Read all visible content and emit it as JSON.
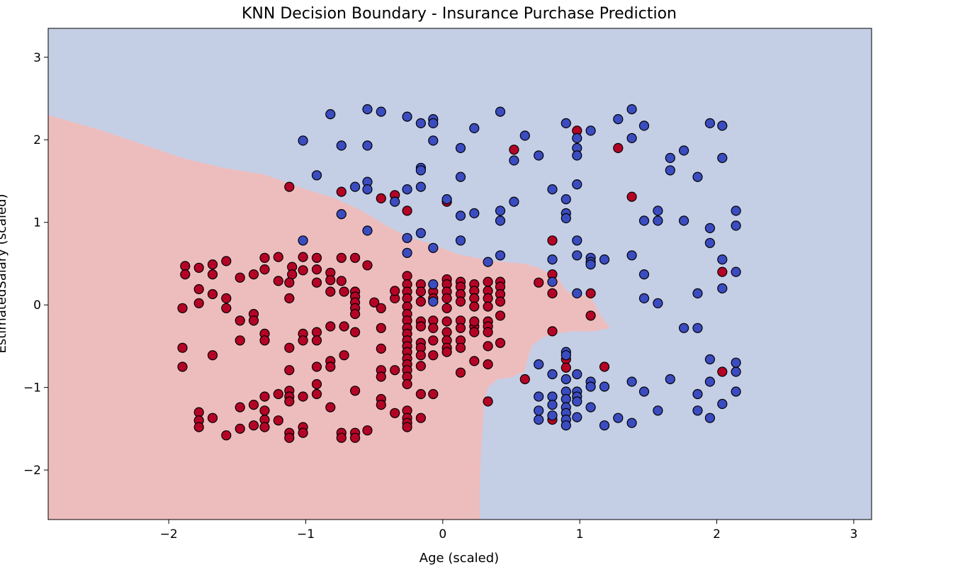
{
  "chart_data": {
    "type": "scatter",
    "title": "KNN Decision Boundary - Insurance Purchase Prediction",
    "xlabel": "Age (scaled)",
    "ylabel": "EstimatedSalary (scaled)",
    "xlim": [
      -2.88,
      3.13
    ],
    "ylim": [
      -2.6,
      3.35
    ],
    "xticks": [
      -2,
      -1,
      0,
      1,
      2,
      3
    ],
    "yticks": [
      -2,
      -1,
      0,
      1,
      2,
      3
    ],
    "xtick_labels": [
      "−2",
      "−1",
      "0",
      "1",
      "2",
      "3"
    ],
    "ytick_labels": [
      "−2",
      "−1",
      "0",
      "1",
      "2",
      "3"
    ],
    "colors": {
      "class_0_region": "#edbdbe",
      "class_1_region": "#c4cfe6",
      "class_0_point": "#b40426",
      "class_1_point": "#3b4cc0",
      "point_edge": "#000000"
    },
    "boundary": [
      [
        -2.88,
        2.3
      ],
      [
        -2.5,
        2.12
      ],
      [
        -2.2,
        1.95
      ],
      [
        -1.9,
        1.78
      ],
      [
        -1.6,
        1.66
      ],
      [
        -1.3,
        1.58
      ],
      [
        -1.0,
        1.4
      ],
      [
        -0.8,
        1.3
      ],
      [
        -0.6,
        1.15
      ],
      [
        -0.4,
        0.95
      ],
      [
        -0.25,
        0.82
      ],
      [
        -0.1,
        0.75
      ],
      [
        0.1,
        0.62
      ],
      [
        0.3,
        0.55
      ],
      [
        0.45,
        0.52
      ],
      [
        0.6,
        0.5
      ],
      [
        0.7,
        0.45
      ],
      [
        0.78,
        0.38
      ],
      [
        0.85,
        0.32
      ],
      [
        0.88,
        0.22
      ],
      [
        0.92,
        0.15
      ],
      [
        1.0,
        0.12
      ],
      [
        1.08,
        0.1
      ],
      [
        1.12,
        -0.02
      ],
      [
        1.15,
        -0.12
      ],
      [
        1.22,
        -0.28
      ],
      [
        1.1,
        -0.32
      ],
      [
        0.95,
        -0.32
      ],
      [
        0.82,
        -0.35
      ],
      [
        0.72,
        -0.4
      ],
      [
        0.65,
        -0.5
      ],
      [
        0.62,
        -0.65
      ],
      [
        0.6,
        -0.8
      ],
      [
        0.5,
        -0.88
      ],
      [
        0.4,
        -0.9
      ],
      [
        0.33,
        -1.0
      ],
      [
        0.3,
        -1.2
      ],
      [
        0.29,
        -1.5
      ],
      [
        0.28,
        -1.8
      ],
      [
        0.27,
        -2.2
      ],
      [
        0.27,
        -2.6
      ]
    ],
    "class_0": [
      [
        -1.88,
        0.47
      ],
      [
        -1.88,
        0.37
      ],
      [
        -1.78,
        0.45
      ],
      [
        -1.68,
        0.49
      ],
      [
        -1.68,
        0.37
      ],
      [
        -1.58,
        0.53
      ],
      [
        -1.48,
        0.33
      ],
      [
        -1.38,
        0.37
      ],
      [
        -1.3,
        0.57
      ],
      [
        -1.3,
        0.43
      ],
      [
        -1.2,
        0.58
      ],
      [
        -1.2,
        0.29
      ],
      [
        -1.1,
        0.46
      ],
      [
        -1.1,
        0.37
      ],
      [
        -1.02,
        0.58
      ],
      [
        -1.02,
        0.42
      ],
      [
        -0.92,
        0.57
      ],
      [
        -0.92,
        0.43
      ],
      [
        -0.82,
        0.39
      ],
      [
        -0.82,
        0.3
      ],
      [
        -0.74,
        0.57
      ],
      [
        -0.74,
        0.29
      ],
      [
        -0.64,
        0.57
      ],
      [
        -0.55,
        0.48
      ],
      [
        -1.9,
        -0.04
      ],
      [
        -1.78,
        0.02
      ],
      [
        -1.78,
        0.19
      ],
      [
        -1.68,
        0.13
      ],
      [
        -1.58,
        0.08
      ],
      [
        -1.58,
        -0.04
      ],
      [
        -1.48,
        -0.19
      ],
      [
        -1.38,
        -0.11
      ],
      [
        -1.38,
        -0.19
      ],
      [
        -1.12,
        0.08
      ],
      [
        -1.12,
        0.27
      ],
      [
        -0.92,
        0.27
      ],
      [
        -0.82,
        0.16
      ],
      [
        -0.72,
        0.16
      ],
      [
        -0.64,
        0.16
      ],
      [
        -0.64,
        0.1
      ],
      [
        -0.64,
        0.03
      ],
      [
        -0.64,
        -0.04
      ],
      [
        -0.64,
        -0.11
      ],
      [
        -0.5,
        0.03
      ],
      [
        -0.45,
        -0.04
      ],
      [
        -0.35,
        0.08
      ],
      [
        -0.35,
        0.17
      ],
      [
        -1.9,
        -0.52
      ],
      [
        -1.9,
        -0.75
      ],
      [
        -1.68,
        -0.61
      ],
      [
        -1.48,
        -0.43
      ],
      [
        -1.3,
        -0.35
      ],
      [
        -1.3,
        -0.43
      ],
      [
        -1.12,
        -0.52
      ],
      [
        -1.02,
        -0.35
      ],
      [
        -1.02,
        -0.43
      ],
      [
        -0.92,
        -0.33
      ],
      [
        -0.92,
        -0.43
      ],
      [
        -0.92,
        -0.75
      ],
      [
        -0.82,
        -0.68
      ],
      [
        -0.82,
        -0.75
      ],
      [
        -0.82,
        -0.26
      ],
      [
        -0.72,
        -0.26
      ],
      [
        -0.72,
        -0.61
      ],
      [
        -0.64,
        -0.33
      ],
      [
        -0.45,
        -0.28
      ],
      [
        -0.45,
        -0.53
      ],
      [
        -0.45,
        -0.79
      ],
      [
        -0.45,
        -0.87
      ],
      [
        -0.35,
        -0.79
      ],
      [
        -1.12,
        -0.79
      ],
      [
        -1.78,
        -1.3
      ],
      [
        -1.78,
        -1.4
      ],
      [
        -1.78,
        -1.48
      ],
      [
        -1.68,
        -1.37
      ],
      [
        -1.58,
        -1.58
      ],
      [
        -1.48,
        -1.24
      ],
      [
        -1.48,
        -1.5
      ],
      [
        -1.38,
        -1.21
      ],
      [
        -1.38,
        -1.46
      ],
      [
        -1.3,
        -1.11
      ],
      [
        -1.3,
        -1.28
      ],
      [
        -1.3,
        -1.39
      ],
      [
        -1.3,
        -1.48
      ],
      [
        -1.2,
        -1.08
      ],
      [
        -1.2,
        -1.4
      ],
      [
        -1.12,
        -1.04
      ],
      [
        -1.12,
        -1.11
      ],
      [
        -1.12,
        -1.17
      ],
      [
        -1.12,
        -1.55
      ],
      [
        -1.12,
        -1.61
      ],
      [
        -1.02,
        -1.11
      ],
      [
        -1.02,
        -1.48
      ],
      [
        -1.02,
        -1.55
      ],
      [
        -0.92,
        -0.96
      ],
      [
        -0.92,
        -1.08
      ],
      [
        -0.82,
        -1.24
      ],
      [
        -0.74,
        -1.55
      ],
      [
        -0.74,
        -1.61
      ],
      [
        -0.64,
        -1.04
      ],
      [
        -0.64,
        -1.55
      ],
      [
        -0.64,
        -1.61
      ],
      [
        -0.55,
        -1.52
      ],
      [
        -0.45,
        -1.14
      ],
      [
        -0.45,
        -1.21
      ],
      [
        -0.35,
        -1.31
      ],
      [
        -0.26,
        0.35
      ],
      [
        -0.26,
        0.25
      ],
      [
        -0.26,
        0.16
      ],
      [
        -0.26,
        0.08
      ],
      [
        -0.26,
        -0.02
      ],
      [
        -0.26,
        -0.11
      ],
      [
        -0.26,
        -0.19
      ],
      [
        -0.26,
        -0.28
      ],
      [
        -0.26,
        -0.35
      ],
      [
        -0.26,
        -0.43
      ],
      [
        -0.26,
        -0.5
      ],
      [
        -0.26,
        -0.57
      ],
      [
        -0.26,
        -0.65
      ],
      [
        -0.26,
        -0.72
      ],
      [
        -0.26,
        -0.79
      ],
      [
        -0.26,
        -0.87
      ],
      [
        -0.26,
        -0.96
      ],
      [
        -0.26,
        -1.28
      ],
      [
        -0.26,
        -1.37
      ],
      [
        -0.26,
        -1.43
      ],
      [
        -0.26,
        -1.48
      ],
      [
        -0.16,
        0.25
      ],
      [
        -0.16,
        0.16
      ],
      [
        -0.16,
        0.04
      ],
      [
        -0.16,
        -0.2
      ],
      [
        -0.16,
        -0.26
      ],
      [
        -0.16,
        -0.46
      ],
      [
        -0.16,
        -0.52
      ],
      [
        -0.16,
        -0.61
      ],
      [
        -0.16,
        -0.74
      ],
      [
        -0.16,
        -1.08
      ],
      [
        -0.16,
        -1.37
      ],
      [
        -0.07,
        0.16
      ],
      [
        -0.07,
        0.08
      ],
      [
        -0.07,
        -0.19
      ],
      [
        -0.07,
        -0.28
      ],
      [
        -0.07,
        -0.43
      ],
      [
        -0.07,
        -0.61
      ],
      [
        -0.07,
        -1.08
      ],
      [
        0.03,
        0.31
      ],
      [
        0.03,
        0.25
      ],
      [
        0.03,
        0.16
      ],
      [
        0.03,
        0.08
      ],
      [
        0.03,
        -0.04
      ],
      [
        0.03,
        -0.2
      ],
      [
        0.03,
        -0.33
      ],
      [
        0.03,
        -0.43
      ],
      [
        0.03,
        -0.52
      ],
      [
        0.03,
        -0.57
      ],
      [
        0.13,
        0.28
      ],
      [
        0.13,
        0.22
      ],
      [
        0.13,
        0.13
      ],
      [
        0.13,
        0.04
      ],
      [
        0.13,
        -0.19
      ],
      [
        0.13,
        -0.28
      ],
      [
        0.13,
        -0.43
      ],
      [
        0.13,
        -0.52
      ],
      [
        0.13,
        -0.82
      ],
      [
        0.23,
        0.25
      ],
      [
        0.23,
        0.17
      ],
      [
        0.23,
        0.08
      ],
      [
        0.23,
        -0.02
      ],
      [
        0.23,
        -0.26
      ],
      [
        0.23,
        -0.33
      ],
      [
        0.23,
        -0.68
      ],
      [
        0.23,
        -0.2
      ],
      [
        0.33,
        0.28
      ],
      [
        0.33,
        0.17
      ],
      [
        0.33,
        0.08
      ],
      [
        0.33,
        -0.02
      ],
      [
        0.33,
        -0.2
      ],
      [
        0.33,
        -0.26
      ],
      [
        0.33,
        -0.33
      ],
      [
        0.33,
        -0.5
      ],
      [
        0.33,
        -0.72
      ],
      [
        0.33,
        -1.17
      ],
      [
        0.42,
        0.28
      ],
      [
        0.42,
        0.22
      ],
      [
        0.42,
        0.13
      ],
      [
        0.42,
        0.04
      ],
      [
        0.42,
        -0.13
      ],
      [
        0.42,
        -0.46
      ],
      [
        -1.12,
        1.43
      ],
      [
        -0.74,
        1.37
      ],
      [
        -0.45,
        1.29
      ],
      [
        -0.35,
        1.33
      ],
      [
        -0.26,
        1.14
      ],
      [
        0.03,
        1.25
      ],
      [
        0.52,
        1.88
      ],
      [
        0.98,
        2.11
      ],
      [
        1.28,
        1.9
      ],
      [
        1.38,
        1.31
      ],
      [
        0.8,
        0.78
      ],
      [
        0.8,
        0.37
      ],
      [
        0.8,
        0.14
      ],
      [
        0.7,
        0.27
      ],
      [
        0.8,
        -0.32
      ],
      [
        0.6,
        -0.9
      ],
      [
        0.9,
        -0.66
      ],
      [
        0.9,
        -0.76
      ],
      [
        1.08,
        0.14
      ],
      [
        1.08,
        -0.13
      ],
      [
        1.18,
        -0.75
      ],
      [
        0.8,
        -1.39
      ],
      [
        2.04,
        0.4
      ],
      [
        2.04,
        -0.81
      ]
    ],
    "class_1": [
      [
        -1.02,
        1.99
      ],
      [
        -0.82,
        2.31
      ],
      [
        -0.74,
        1.93
      ],
      [
        -0.55,
        2.37
      ],
      [
        -0.55,
        1.93
      ],
      [
        -0.45,
        2.34
      ],
      [
        -0.26,
        2.28
      ],
      [
        -0.16,
        2.2
      ],
      [
        -0.07,
        2.25
      ],
      [
        -0.07,
        2.2
      ],
      [
        -0.07,
        1.99
      ],
      [
        0.13,
        1.9
      ],
      [
        0.23,
        2.14
      ],
      [
        0.42,
        2.34
      ],
      [
        0.6,
        2.05
      ],
      [
        0.7,
        1.81
      ],
      [
        0.52,
        1.75
      ],
      [
        0.9,
        2.2
      ],
      [
        0.98,
        2.02
      ],
      [
        0.98,
        1.9
      ],
      [
        0.98,
        1.81
      ],
      [
        1.08,
        2.11
      ],
      [
        1.28,
        2.25
      ],
      [
        1.38,
        2.37
      ],
      [
        1.38,
        2.02
      ],
      [
        1.47,
        2.17
      ],
      [
        1.66,
        1.78
      ],
      [
        1.66,
        1.63
      ],
      [
        1.76,
        1.87
      ],
      [
        1.86,
        1.55
      ],
      [
        1.95,
        2.2
      ],
      [
        2.04,
        2.17
      ],
      [
        2.04,
        1.78
      ],
      [
        -0.92,
        1.57
      ],
      [
        -0.64,
        1.43
      ],
      [
        -0.55,
        1.49
      ],
      [
        -0.55,
        1.4
      ],
      [
        -0.74,
        1.1
      ],
      [
        -0.55,
        0.9
      ],
      [
        -0.35,
        1.25
      ],
      [
        -0.16,
        1.66
      ],
      [
        -0.16,
        1.63
      ],
      [
        -0.16,
        1.43
      ],
      [
        -0.26,
        1.4
      ],
      [
        0.03,
        1.28
      ],
      [
        0.13,
        1.55
      ],
      [
        0.13,
        1.08
      ],
      [
        0.23,
        1.11
      ],
      [
        0.42,
        1.14
      ],
      [
        0.42,
        1.02
      ],
      [
        0.52,
        1.25
      ],
      [
        0.8,
        1.4
      ],
      [
        0.9,
        1.28
      ],
      [
        0.9,
        1.11
      ],
      [
        0.9,
        1.05
      ],
      [
        0.98,
        1.46
      ],
      [
        1.47,
        1.02
      ],
      [
        1.57,
        1.14
      ],
      [
        1.57,
        1.02
      ],
      [
        1.76,
        1.02
      ],
      [
        1.95,
        0.93
      ],
      [
        2.14,
        1.14
      ],
      [
        2.14,
        0.96
      ],
      [
        -1.02,
        0.78
      ],
      [
        -0.26,
        0.81
      ],
      [
        -0.16,
        0.87
      ],
      [
        -0.07,
        0.69
      ],
      [
        -0.26,
        0.63
      ],
      [
        0.13,
        0.78
      ],
      [
        0.33,
        0.52
      ],
      [
        0.42,
        0.6
      ],
      [
        0.8,
        0.55
      ],
      [
        0.98,
        0.78
      ],
      [
        0.98,
        0.6
      ],
      [
        1.08,
        0.57
      ],
      [
        1.08,
        0.52
      ],
      [
        1.08,
        0.49
      ],
      [
        1.18,
        0.55
      ],
      [
        1.38,
        0.6
      ],
      [
        1.47,
        0.37
      ],
      [
        1.95,
        0.75
      ],
      [
        2.04,
        0.55
      ],
      [
        2.14,
        0.4
      ],
      [
        -0.07,
        0.25
      ],
      [
        -0.07,
        0.04
      ],
      [
        0.8,
        0.28
      ],
      [
        0.98,
        0.14
      ],
      [
        1.47,
        0.08
      ],
      [
        1.57,
        0.02
      ],
      [
        1.76,
        -0.28
      ],
      [
        1.86,
        -0.28
      ],
      [
        1.86,
        0.14
      ],
      [
        2.04,
        0.2
      ],
      [
        0.7,
        -0.72
      ],
      [
        0.8,
        -0.84
      ],
      [
        0.9,
        -0.57
      ],
      [
        0.9,
        -0.61
      ],
      [
        0.9,
        -0.9
      ],
      [
        0.98,
        -0.84
      ],
      [
        1.08,
        -0.93
      ],
      [
        1.08,
        -0.99
      ],
      [
        1.18,
        -0.99
      ],
      [
        1.38,
        -0.93
      ],
      [
        1.47,
        -1.05
      ],
      [
        1.66,
        -0.9
      ],
      [
        1.86,
        -1.08
      ],
      [
        1.95,
        -0.93
      ],
      [
        1.95,
        -0.66
      ],
      [
        2.14,
        -0.7
      ],
      [
        2.14,
        -0.81
      ],
      [
        2.14,
        -1.05
      ],
      [
        0.7,
        -1.11
      ],
      [
        0.7,
        -1.28
      ],
      [
        0.7,
        -1.39
      ],
      [
        0.8,
        -1.11
      ],
      [
        0.8,
        -1.21
      ],
      [
        0.8,
        -1.34
      ],
      [
        0.9,
        -1.05
      ],
      [
        0.9,
        -1.14
      ],
      [
        0.9,
        -1.24
      ],
      [
        0.9,
        -1.31
      ],
      [
        0.9,
        -1.39
      ],
      [
        0.9,
        -1.46
      ],
      [
        0.98,
        -1.05
      ],
      [
        0.98,
        -1.11
      ],
      [
        0.98,
        -1.17
      ],
      [
        0.98,
        -1.36
      ],
      [
        1.08,
        -1.24
      ],
      [
        1.18,
        -1.46
      ],
      [
        1.28,
        -1.37
      ],
      [
        1.38,
        -1.43
      ],
      [
        1.57,
        -1.28
      ],
      [
        1.86,
        -1.28
      ],
      [
        1.95,
        -1.37
      ],
      [
        2.04,
        -1.2
      ]
    ]
  }
}
